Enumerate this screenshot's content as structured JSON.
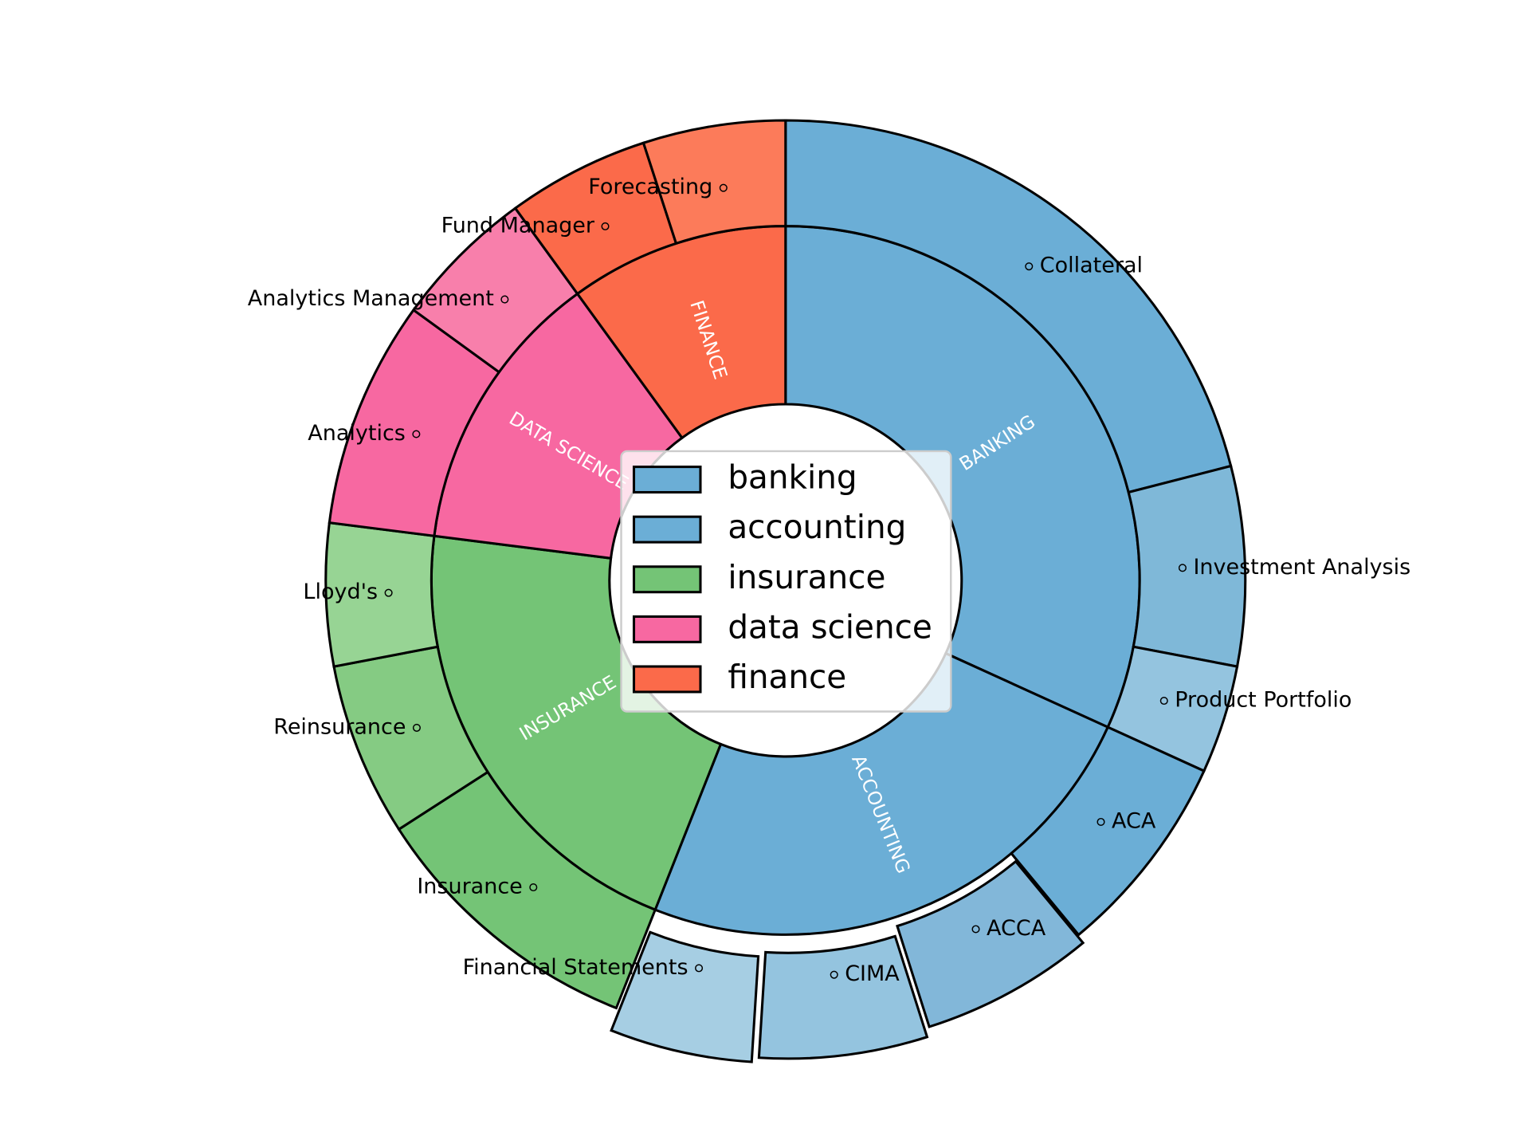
{
  "chart_data": {
    "type": "sunburst",
    "inner": {
      "categories": [
        "banking",
        "accounting",
        "insurance",
        "data science",
        "finance"
      ],
      "labels": [
        "BANKING",
        "ACCOUNTING",
        "INSURANCE",
        "DATA SCIENCE",
        "FINANCE"
      ],
      "values": [
        31.8,
        24.2,
        21.0,
        13.0,
        10.0
      ],
      "colors": [
        "#6baed6",
        "#6baed6",
        "#74c476",
        "#f768a1",
        "#fb6a4a"
      ]
    },
    "outer": {
      "categories": [
        "Collateral",
        "Investment Analysis",
        "Product Portfolio",
        "ACA",
        "ACCA",
        "CIMA",
        "Financial Statements",
        "Insurance",
        "Reinsurance",
        "Lloyd's",
        "Analytics",
        "Analytics Management",
        "Fund Manager",
        "Forecasting"
      ],
      "values": [
        21.0,
        7.0,
        3.8,
        7.2,
        6.1,
        5.9,
        5.0,
        9.9,
        6.1,
        5.0,
        8.0,
        5.0,
        5.0,
        5.0
      ],
      "colors": [
        "#6baed6",
        "#7fb8d8",
        "#94c4df",
        "#6baed6",
        "#82b7d9",
        "#94c4df",
        "#a6cee3",
        "#74c476",
        "#85cb83",
        "#97d494",
        "#f768a1",
        "#f87fab",
        "#fb6a4a",
        "#fc7b5a"
      ],
      "explode": [
        0,
        0,
        0,
        0,
        0.02,
        0.04,
        0.05,
        0,
        0,
        0,
        0,
        0,
        0,
        0
      ]
    },
    "legend": "center"
  }
}
